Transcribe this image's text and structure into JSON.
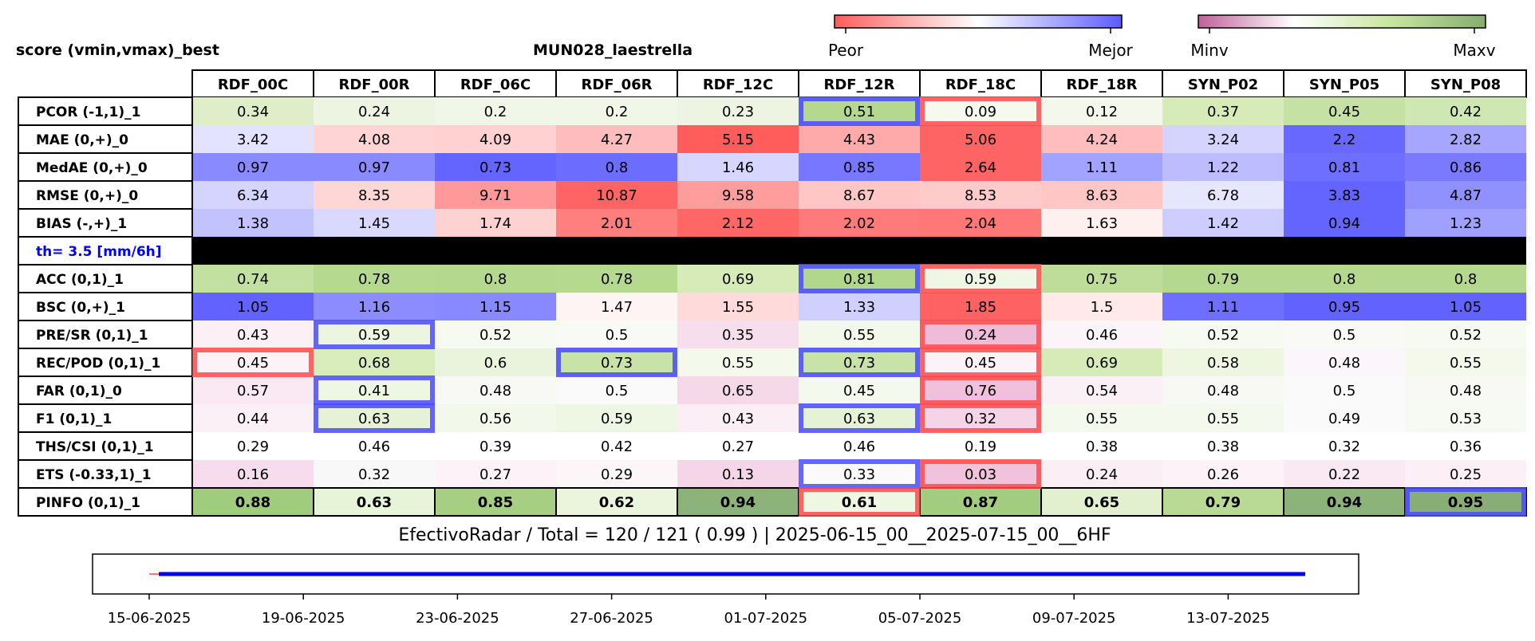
{
  "header": {
    "left_title": "score (vmin,vmax)_best",
    "center_title": "MUN028_laestrella"
  },
  "colorbars": [
    {
      "name": "peor-mejor",
      "left_label": "Peor",
      "right_label": "Mejor",
      "stops": [
        "#ff5c5c",
        "#ffffff",
        "#5c5cff"
      ]
    },
    {
      "name": "minv-maxv",
      "left_label": "Minv",
      "right_label": "Maxv",
      "stops": [
        "#c0609a",
        "#ffffff",
        "#c8e6a0",
        "#86ad72"
      ]
    }
  ],
  "chart_data": {
    "type": "heatmap",
    "columns": [
      "RDF_00C",
      "RDF_00R",
      "RDF_06C",
      "RDF_06R",
      "RDF_12C",
      "RDF_12R",
      "RDF_18C",
      "RDF_18R",
      "SYN_P02",
      "SYN_P05",
      "SYN_P08"
    ],
    "rows": [
      {
        "label": "PCOR (-1,1)_1",
        "values": [
          "0.34",
          "0.24",
          "0.2",
          "0.2",
          "0.23",
          "0.51",
          "0.09",
          "0.12",
          "0.37",
          "0.45",
          "0.42"
        ],
        "colors": [
          "#dfeec8",
          "#edf5e2",
          "#f1f7e8",
          "#f1f7e8",
          "#edf5e2",
          "#b5d88f",
          "#f5f9ee",
          "#f4f8ec",
          "#d6ebb8",
          "#c5e2a4",
          "#cfe7b2"
        ],
        "best": [
          5
        ],
        "worst": [
          6
        ]
      },
      {
        "label": "MAE (0,+)_0",
        "values": [
          "3.42",
          "4.08",
          "4.09",
          "4.27",
          "5.15",
          "4.43",
          "5.06",
          "4.24",
          "3.24",
          "2.2",
          "2.82"
        ],
        "colors": [
          "#e3e3ff",
          "#ffd4d4",
          "#ffd1d1",
          "#ffbcbc",
          "#ff5c5c",
          "#ffaaaa",
          "#ff6464",
          "#ffbdbd",
          "#d4d4ff",
          "#6868ff",
          "#a6a6ff"
        ],
        "best": [],
        "worst": []
      },
      {
        "label": "MedAE (0,+)_0",
        "values": [
          "0.97",
          "0.97",
          "0.73",
          "0.8",
          "1.46",
          "0.85",
          "2.64",
          "1.11",
          "1.22",
          "0.81",
          "0.86"
        ],
        "colors": [
          "#8a8aff",
          "#8a8aff",
          "#6464ff",
          "#6c6cff",
          "#d6d6ff",
          "#7777ff",
          "#ff6464",
          "#a2a2ff",
          "#bcbcff",
          "#6e6eff",
          "#7a7aff"
        ],
        "best": [],
        "worst": []
      },
      {
        "label": "RMSE (0,+)_0",
        "values": [
          "6.34",
          "8.35",
          "9.71",
          "10.87",
          "9.58",
          "8.67",
          "8.53",
          "8.63",
          "6.78",
          "3.83",
          "4.87"
        ],
        "colors": [
          "#d4d4ff",
          "#ffd6d6",
          "#ff9898",
          "#ff6464",
          "#ff9c9c",
          "#ffc6c6",
          "#ffcaca",
          "#ffc6c6",
          "#e6e6ff",
          "#6464ff",
          "#9090ff"
        ],
        "best": [],
        "worst": []
      },
      {
        "label": "BIAS (-,+)_1",
        "values": [
          "1.38",
          "1.45",
          "1.74",
          "2.01",
          "2.12",
          "2.02",
          "2.04",
          "1.63",
          "1.42",
          "0.94",
          "1.23"
        ],
        "colors": [
          "#c2c2ff",
          "#d9d9ff",
          "#ffd2d2",
          "#ff7e7e",
          "#ff6666",
          "#ff7a7a",
          "#ff7777",
          "#fff0f0",
          "#cdcdff",
          "#6464ff",
          "#a0a0ff"
        ],
        "best": [],
        "worst": []
      },
      {
        "label": "th= 3.5 [mm/6h]",
        "separator": true
      },
      {
        "label": "ACC (0,1)_1",
        "values": [
          "0.74",
          "0.78",
          "0.8",
          "0.78",
          "0.69",
          "0.81",
          "0.59",
          "0.75",
          "0.79",
          "0.8",
          "0.8"
        ],
        "colors": [
          "#c2e0a0",
          "#b6d990",
          "#b4d88e",
          "#b6d990",
          "#d6ebb8",
          "#b1d78a",
          "#eef6e4",
          "#bedd9a",
          "#b4d88e",
          "#b4d88e",
          "#b4d88e"
        ],
        "best": [
          5
        ],
        "worst": [
          6
        ]
      },
      {
        "label": "BSC (0,+)_1",
        "values": [
          "1.05",
          "1.16",
          "1.15",
          "1.47",
          "1.55",
          "1.33",
          "1.85",
          "1.5",
          "1.11",
          "0.95",
          "1.05"
        ],
        "colors": [
          "#6262ff",
          "#8c8cff",
          "#8888ff",
          "#fff4f4",
          "#ffdada",
          "#d0d0ff",
          "#ff6262",
          "#ffeaea",
          "#6e6eff",
          "#6262ff",
          "#6262ff"
        ],
        "best": [],
        "worst": []
      },
      {
        "label": "PRE/SR (0,1)_1",
        "values": [
          "0.43",
          "0.59",
          "0.52",
          "0.5",
          "0.35",
          "0.55",
          "0.24",
          "0.46",
          "0.52",
          "0.5",
          "0.52"
        ],
        "colors": [
          "#fcf0f6",
          "#ecf5e0",
          "#f6faf0",
          "#f9faf6",
          "#f7deec",
          "#f2f8ea",
          "#eebbd8",
          "#fbf4f8",
          "#f6faf0",
          "#f9faf6",
          "#f6faf0"
        ],
        "best": [
          1
        ],
        "worst": [
          6
        ]
      },
      {
        "label": "REC/POD (0,1)_1",
        "values": [
          "0.45",
          "0.68",
          "0.6",
          "0.73",
          "0.55",
          "0.73",
          "0.45",
          "0.69",
          "0.58",
          "0.48",
          "0.55"
        ],
        "colors": [
          "#fcf2f7",
          "#d9ecbc",
          "#eaf4dc",
          "#c8e3a8",
          "#f4f9ec",
          "#c8e3a8",
          "#fcf2f7",
          "#d6ebb8",
          "#eef6e2",
          "#fbf6f9",
          "#f4f9ec"
        ],
        "best": [
          3,
          5
        ],
        "worst": [
          0,
          6
        ]
      },
      {
        "label": "FAR (0,1)_0",
        "values": [
          "0.57",
          "0.41",
          "0.48",
          "0.5",
          "0.65",
          "0.45",
          "0.76",
          "0.54",
          "0.48",
          "0.5",
          "0.48"
        ],
        "colors": [
          "#fae8f2",
          "#eef6e4",
          "#f8f9f5",
          "#fafafa",
          "#f6d9e8",
          "#f4f9ee",
          "#f0c0dc",
          "#fbf0f6",
          "#f8f9f5",
          "#fafafa",
          "#f8f9f5"
        ],
        "best": [
          1
        ],
        "worst": [
          6
        ]
      },
      {
        "label": "F1 (0,1)_1",
        "values": [
          "0.44",
          "0.63",
          "0.56",
          "0.59",
          "0.43",
          "0.63",
          "0.32",
          "0.55",
          "0.55",
          "0.49",
          "0.53"
        ],
        "colors": [
          "#fbf0f6",
          "#e6f2d6",
          "#f2f8ea",
          "#eef6e4",
          "#fbeef5",
          "#e6f2d6",
          "#f4d4e6",
          "#f4f9ee",
          "#f4f9ee",
          "#fafafa",
          "#f6faf2"
        ],
        "best": [
          1,
          5
        ],
        "worst": [
          6
        ]
      },
      {
        "label": "THS/CSI (0,1)_1",
        "values": [
          "0.29",
          "0.46",
          "0.39",
          "0.42",
          "0.27",
          "0.46",
          "0.19",
          "0.38",
          "0.38",
          "0.32",
          "0.36"
        ],
        "colors": [
          "#ffffff",
          "#ffffff",
          "#ffffff",
          "#ffffff",
          "#ffffff",
          "#ffffff",
          "#ffffff",
          "#ffffff",
          "#ffffff",
          "#ffffff",
          "#ffffff"
        ],
        "best": [],
        "worst": []
      },
      {
        "label": "ETS (-0.33,1)_1",
        "values": [
          "0.16",
          "0.32",
          "0.27",
          "0.29",
          "0.13",
          "0.33",
          "0.03",
          "0.24",
          "0.26",
          "0.22",
          "0.25"
        ],
        "colors": [
          "#f6dcec",
          "#f8f8f8",
          "#fcf2f7",
          "#fcf6f9",
          "#f5d6e8",
          "#fafafa",
          "#f0c2dc",
          "#fbeef5",
          "#fcf2f7",
          "#fae8f2",
          "#fcf0f6"
        ],
        "best": [
          5
        ],
        "worst": [
          6
        ]
      },
      {
        "label": "PINFO (0,1)_1",
        "values": [
          "0.88",
          "0.63",
          "0.85",
          "0.62",
          "0.94",
          "0.61",
          "0.87",
          "0.65",
          "0.79",
          "0.94",
          "0.95"
        ],
        "colors": [
          "#a0cc7e",
          "#e8f4d8",
          "#a6cf84",
          "#eaf5dc",
          "#8cb37a",
          "#eef7e2",
          "#a2cd80",
          "#e2f0cf",
          "#b8da94",
          "#8cb37a",
          "#88ae76"
        ],
        "best": [
          10
        ],
        "worst": [
          5
        ],
        "bold": true
      }
    ]
  },
  "footer": {
    "summary": "EfectivoRadar / Total  =  120 / 121 ( 0.99 ) | 2025-06-15_00__2025-07-15_00__6HF"
  },
  "timeline": {
    "x_ticks": [
      "15-06-2025",
      "19-06-2025",
      "23-06-2025",
      "27-06-2025",
      "01-07-2025",
      "05-07-2025",
      "09-07-2025",
      "13-07-2025"
    ],
    "series": [
      {
        "color": "#ff4444",
        "start": "2025-06-15 00:00",
        "end": "2025-06-15 06:00"
      },
      {
        "color": "#0000ee",
        "start": "2025-06-15 06:00",
        "end": "2025-07-15 00:00"
      }
    ]
  },
  "colors": {
    "best_border": "#4a4aff",
    "worst_border": "#ff4a4a",
    "separator_fill": "#000000",
    "separator_text": "#0000ff"
  }
}
